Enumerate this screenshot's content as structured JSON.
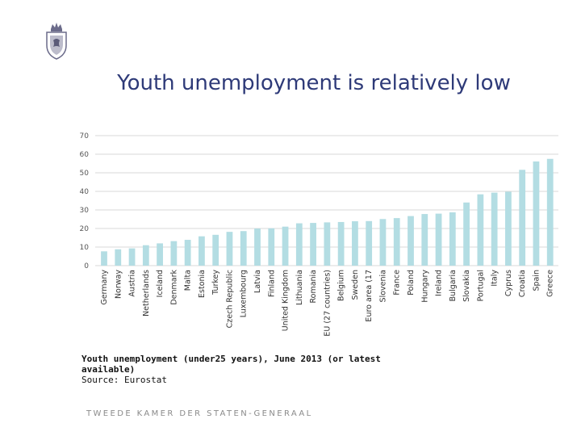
{
  "slide": {
    "title": "Youth unemployment is relatively low",
    "caption": "Youth unemployment (under25 years), June 2013 (or latest available)",
    "source": "Source: Eurostat",
    "footer": "TWEEDE KAMER DER STATEN-GENERAAL"
  },
  "colors": {
    "bar": "#b3dde3",
    "title": "#2e3a78",
    "grid": "#d9d9d9",
    "logo": "#6b6b8a"
  },
  "logo_icon": "coat-of-arms-icon",
  "chart_data": {
    "type": "bar",
    "title": "",
    "xlabel": "",
    "ylabel": "",
    "ylim": [
      0,
      70
    ],
    "yticks": [
      0,
      10,
      20,
      30,
      40,
      50,
      60,
      70
    ],
    "grid": true,
    "categories": [
      "Germany",
      "Norway",
      "Austria",
      "Netherlands",
      "Iceland",
      "Denmark",
      "Malta",
      "Estonia",
      "Turkey",
      "Czech Republic",
      "Luxembourg",
      "Latvia",
      "Finland",
      "United Kingdom",
      "Lithuania",
      "Romania",
      "EU (27 countries)",
      "Belgium",
      "Sweden",
      "Euro area (17",
      "Slovenia",
      "France",
      "Poland",
      "Hungary",
      "Ireland",
      "Bulgaria",
      "Slovakia",
      "Portugal",
      "Italy",
      "Cyprus",
      "Croatia",
      "Spain",
      "Greece"
    ],
    "values": [
      7.7,
      8.8,
      9.3,
      11.0,
      12.0,
      13.2,
      13.9,
      15.8,
      16.6,
      18.2,
      18.6,
      20.0,
      20.1,
      21.0,
      22.8,
      23.0,
      23.3,
      23.5,
      23.9,
      24.0,
      25.1,
      25.6,
      26.7,
      27.8,
      28.0,
      28.7,
      34.0,
      38.4,
      39.3,
      39.8,
      51.6,
      56.1,
      57.5
    ]
  }
}
